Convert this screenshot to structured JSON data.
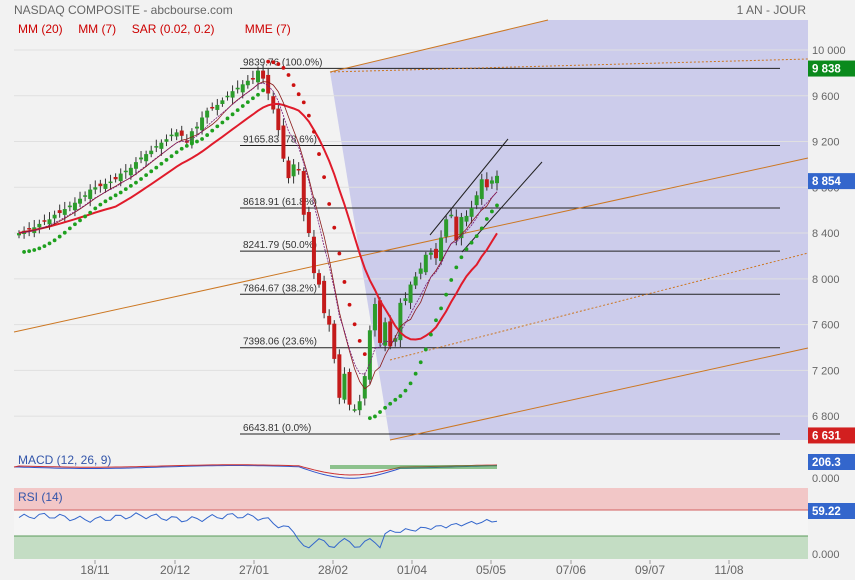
{
  "header": {
    "title": "NASDAQ COMPOSITE - abcbourse.com",
    "period": "1 AN - JOUR"
  },
  "chart_data": {
    "type": "candlestick",
    "price_axis": {
      "ticks": [
        "10 000",
        "9 600",
        "9 200",
        "8 800",
        "8 400",
        "8 000",
        "7 600",
        "7 200",
        "6 800"
      ],
      "ylim": [
        6600,
        10100
      ]
    },
    "x_ticks": [
      "18/11",
      "20/12",
      "27/01",
      "28/02",
      "01/04",
      "05/05",
      "07/06",
      "09/07",
      "11/08"
    ],
    "indicators": [
      {
        "name": "MM (20)",
        "color": "#cc0000"
      },
      {
        "name": "MM (7)",
        "color": "#cc0000"
      },
      {
        "name": "SAR (0.02, 0.2)",
        "color": "#cc0000"
      },
      {
        "name": "MME (7)",
        "color": "#cc0000"
      }
    ],
    "fibonacci": [
      {
        "label": "9839.76  (100.0%)",
        "value": 9839.76
      },
      {
        "label": "9165.83  (78.6%)",
        "value": 9165.83
      },
      {
        "label": "8618.91  (61.8%)",
        "value": 8618.91
      },
      {
        "label": "8241.79  (50.0%)",
        "value": 8241.79
      },
      {
        "label": "7864.67  (38.2%)",
        "value": 7864.67
      },
      {
        "label": "7398.06  (23.6%)",
        "value": 7398.06
      },
      {
        "label": "6643.81  (0.0%)",
        "value": 6643.81
      }
    ],
    "badges": [
      {
        "text": "9 838",
        "value": 9838,
        "color": "#0a8a1c"
      },
      {
        "text": "8 854",
        "value": 8854,
        "color": "#3366cc"
      },
      {
        "text": "6 631",
        "value": 6631,
        "color": "#d21f1f"
      }
    ],
    "close_series": [
      8400,
      8420,
      8432,
      8450,
      8480,
      8500,
      8520,
      8560,
      8575,
      8610,
      8640,
      8665,
      8700,
      8730,
      8780,
      8800,
      8810,
      8830,
      8850,
      8870,
      8920,
      8945,
      8970,
      9020,
      9060,
      9090,
      9120,
      9160,
      9190,
      9220,
      9260,
      9280,
      9250,
      9190,
      9290,
      9330,
      9410,
      9470,
      9500,
      9520,
      9560,
      9600,
      9640,
      9670,
      9700,
      9731,
      9750,
      9820,
      9750,
      9620,
      9480,
      9300,
      9050,
      8880,
      9000,
      8950,
      8560,
      8400,
      8050,
      7950,
      7700,
      7600,
      7300,
      6960,
      7170,
      6900,
      6860,
      6930,
      7150,
      7550,
      7780,
      7440,
      7620,
      7410,
      7480,
      7790,
      7830,
      7950,
      8020,
      8090,
      8210,
      8230,
      8180,
      8360,
      8520,
      8560,
      8340,
      8540,
      8550,
      8620,
      8730,
      8870,
      8800,
      8860,
      8900
    ],
    "panels": [
      {
        "name": "MACD (12, 26, 9)",
        "badge": "206.3",
        "badge_color": "#3366cc",
        "extra_tick": "0.000"
      },
      {
        "name": "RSI (14)",
        "badge": "59.22",
        "badge_color": "#3366cc",
        "extra_tick": "0.000"
      }
    ]
  }
}
